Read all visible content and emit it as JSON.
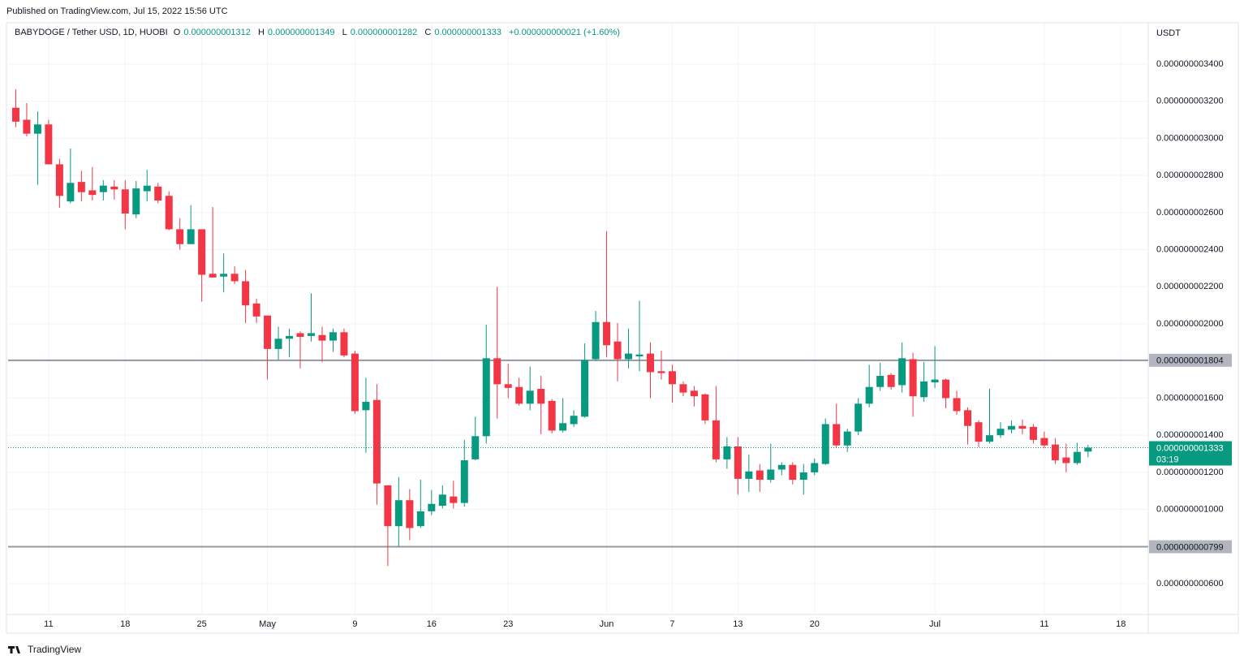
{
  "published": "Published on TradingView.com, Jul 15, 2022 15:56 UTC",
  "branding": "TradingView",
  "legend": {
    "symbol": "BABYDOGE / Tether USD, 1D, HUOBI",
    "ohlc": [
      {
        "key": "O",
        "text": "0.000000001312"
      },
      {
        "key": "H",
        "text": "0.000000001349"
      },
      {
        "key": "L",
        "text": "0.000000001282"
      },
      {
        "key": "C",
        "text": "0.000000001333"
      }
    ],
    "change": "+0.000000000021 (+1.60%)"
  },
  "chart_data": {
    "type": "candlestick",
    "unit": "USDT",
    "up_color": "#089981",
    "down_color": "#f23645",
    "grid": true,
    "open": [
      3.165e-09,
      3.1e-09,
      3.025e-09,
      3.075e-09,
      2.86e-09,
      2.66e-09,
      2.765e-09,
      2.72e-09,
      2.71e-09,
      2.74e-09,
      2.725e-09,
      2.59e-09,
      2.715e-09,
      2.74e-09,
      2.69e-09,
      2.51e-09,
      2.43e-09,
      2.51e-09,
      2.27e-09,
      2.255e-09,
      2.27e-09,
      2.23e-09,
      2.11e-09,
      2.045e-09,
      1.865e-09,
      1.92e-09,
      1.95e-09,
      1.935e-09,
      1.94e-09,
      1.91e-09,
      1.955e-09,
      1.84e-09,
      1.535e-09,
      1.59e-09,
      1.13e-09,
      9.1e-10,
      1.05e-09,
      9.1e-10,
      9.9e-10,
      1.02e-09,
      1.07e-09,
      1.035e-09,
      1.27e-09,
      1.395e-09,
      1.815e-09,
      1.675e-09,
      1.66e-09,
      1.57e-09,
      1.65e-09,
      1.585e-09,
      1.425e-09,
      1.46e-09,
      1.5e-09,
      1.81e-09,
      2.01e-09,
      1.905e-09,
      1.81e-09,
      1.825e-09,
      1.84e-09,
      1.745e-09,
      1.745e-09,
      1.675e-09,
      1.64e-09,
      1.62e-09,
      1.48e-09,
      1.27e-09,
      1.34e-09,
      1.165e-09,
      1.21e-09,
      1.16e-09,
      1.215e-09,
      1.24e-09,
      1.16e-09,
      1.2e-09,
      1.245e-09,
      1.46e-09,
      1.345e-09,
      1.42e-09,
      1.57e-09,
      1.66e-09,
      1.725e-09,
      1.67e-09,
      1.81e-09,
      1.605e-09,
      1.685e-09,
      1.7e-09,
      1.6e-09,
      1.535e-09,
      1.47e-09,
      1.365e-09,
      1.4e-09,
      1.43e-09,
      1.45e-09,
      1.445e-09,
      1.385e-09,
      1.35e-09,
      1.28e-09,
      1.25e-09,
      1.312e-09
    ],
    "high": [
      3.265e-09,
      3.19e-09,
      3.145e-09,
      3.1e-09,
      2.89e-09,
      2.945e-09,
      2.825e-09,
      2.845e-09,
      2.775e-09,
      2.775e-09,
      2.775e-09,
      2.77e-09,
      2.83e-09,
      2.76e-09,
      2.715e-09,
      2.57e-09,
      2.64e-09,
      2.51e-09,
      2.63e-09,
      2.38e-09,
      2.31e-09,
      2.29e-09,
      2.135e-09,
      2.045e-09,
      1.985e-09,
      1.975e-09,
      1.96e-09,
      2.165e-09,
      1.985e-09,
      1.975e-09,
      1.975e-09,
      1.855e-09,
      1.71e-09,
      1.675e-09,
      1.13e-09,
      1.175e-09,
      1.11e-09,
      1.16e-09,
      1.105e-09,
      1.13e-09,
      1.155e-09,
      1.375e-09,
      1.5e-09,
      1.995e-09,
      2.2e-09,
      1.785e-09,
      1.71e-09,
      1.77e-09,
      1.72e-09,
      1.595e-09,
      1.6e-09,
      1.535e-09,
      1.895e-09,
      2.07e-09,
      2.5e-09,
      2.005e-09,
      1.975e-09,
      2.125e-09,
      1.9e-09,
      1.855e-09,
      1.78e-09,
      1.69e-09,
      1.665e-09,
      1.625e-09,
      1.665e-09,
      1.39e-09,
      1.39e-09,
      1.295e-09,
      1.245e-09,
      1.355e-09,
      1.255e-09,
      1.255e-09,
      1.245e-09,
      1.275e-09,
      1.49e-09,
      1.57e-09,
      1.435e-09,
      1.6e-09,
      1.78e-09,
      1.79e-09,
      1.735e-09,
      1.9e-09,
      1.845e-09,
      1.795e-09,
      1.88e-09,
      1.705e-09,
      1.64e-09,
      1.55e-09,
      1.48e-09,
      1.65e-09,
      1.47e-09,
      1.48e-09,
      1.485e-09,
      1.46e-09,
      1.42e-09,
      1.385e-09,
      1.355e-09,
      1.36e-09,
      1.349e-09
    ],
    "low": [
      3.06e-09,
      3.01e-09,
      2.75e-09,
      2.86e-09,
      2.625e-09,
      2.65e-09,
      2.66e-09,
      2.665e-09,
      2.665e-09,
      2.67e-09,
      2.51e-09,
      2.57e-09,
      2.66e-09,
      2.65e-09,
      2.505e-09,
      2.4e-09,
      2.43e-09,
      2.12e-09,
      2.25e-09,
      2.17e-09,
      2.215e-09,
      2.005e-09,
      2.005e-09,
      1.7e-09,
      1.805e-09,
      1.82e-09,
      1.76e-09,
      1.905e-09,
      1.795e-09,
      1.85e-09,
      1.82e-09,
      1.515e-09,
      1.305e-09,
      1.025e-09,
      6.95e-10,
      8e-10,
      8.35e-10,
      9e-10,
      9.7e-10,
      1.005e-09,
      1.005e-09,
      1.015e-09,
      1.265e-09,
      1.355e-09,
      1.49e-09,
      1.6e-09,
      1.56e-09,
      1.535e-09,
      1.405e-09,
      1.41e-09,
      1.415e-09,
      1.445e-09,
      1.495e-09,
      1.8e-09,
      1.82e-09,
      1.69e-09,
      1.76e-09,
      1.745e-09,
      1.6e-09,
      1.7e-09,
      1.575e-09,
      1.61e-09,
      1.555e-09,
      1.46e-09,
      1.255e-09,
      1.22e-09,
      1.08e-09,
      1.095e-09,
      1.095e-09,
      1.145e-09,
      1.185e-09,
      1.135e-09,
      1.08e-09,
      1.185e-09,
      1.24e-09,
      1.335e-09,
      1.31e-09,
      1.4e-09,
      1.55e-09,
      1.64e-09,
      1.645e-09,
      1.63e-09,
      1.5e-09,
      1.58e-09,
      1.655e-09,
      1.545e-09,
      1.51e-09,
      1.35e-09,
      1.335e-09,
      1.355e-09,
      1.385e-09,
      1.41e-09,
      1.405e-09,
      1.355e-09,
      1.33e-09,
      1.245e-09,
      1.2e-09,
      1.24e-09,
      1.282e-09
    ],
    "close": [
      3.09e-09,
      3.025e-09,
      3.075e-09,
      2.86e-09,
      2.69e-09,
      2.76e-09,
      2.71e-09,
      2.695e-09,
      2.745e-09,
      2.725e-09,
      2.595e-09,
      2.73e-09,
      2.745e-09,
      2.665e-09,
      2.51e-09,
      2.43e-09,
      2.51e-09,
      2.265e-09,
      2.25e-09,
      2.27e-09,
      2.23e-09,
      2.1e-09,
      2.04e-09,
      1.865e-09,
      1.92e-09,
      1.935e-09,
      1.93e-09,
      1.95e-09,
      1.91e-09,
      1.955e-09,
      1.83e-09,
      1.53e-09,
      1.58e-09,
      1.14e-09,
      9.1e-10,
      1.05e-09,
      9e-10,
      9.9e-10,
      1.03e-09,
      1.08e-09,
      1.035e-09,
      1.265e-09,
      1.395e-09,
      1.815e-09,
      1.675e-09,
      1.655e-09,
      1.57e-09,
      1.64e-09,
      1.57e-09,
      1.425e-09,
      1.465e-09,
      1.505e-09,
      1.805e-09,
      2.01e-09,
      1.885e-09,
      1.81e-09,
      1.84e-09,
      1.835e-09,
      1.74e-09,
      1.735e-09,
      1.675e-09,
      1.63e-09,
      1.61e-09,
      1.48e-09,
      1.27e-09,
      1.34e-09,
      1.165e-09,
      1.205e-09,
      1.16e-09,
      1.215e-09,
      1.24e-09,
      1.16e-09,
      1.2e-09,
      1.25e-09,
      1.46e-09,
      1.345e-09,
      1.42e-09,
      1.57e-09,
      1.66e-09,
      1.72e-09,
      1.66e-09,
      1.815e-09,
      1.61e-09,
      1.69e-09,
      1.7e-09,
      1.6e-09,
      1.53e-09,
      1.45e-09,
      1.365e-09,
      1.4e-09,
      1.435e-09,
      1.45e-09,
      1.435e-09,
      1.375e-09,
      1.345e-09,
      1.265e-09,
      1.25e-09,
      1.31e-09,
      1.333e-09
    ],
    "xlim": [
      -0.7,
      103.5
    ],
    "xticks": [
      {
        "value": 3,
        "label": "11"
      },
      {
        "value": 10,
        "label": "18"
      },
      {
        "value": 17,
        "label": "25"
      },
      {
        "value": 23,
        "label": "May"
      },
      {
        "value": 31,
        "label": "9"
      },
      {
        "value": 38,
        "label": "16"
      },
      {
        "value": 45,
        "label": "23"
      },
      {
        "value": 54,
        "label": "Jun"
      },
      {
        "value": 60,
        "label": "7"
      },
      {
        "value": 66,
        "label": "13"
      },
      {
        "value": 73,
        "label": "20"
      },
      {
        "value": 84,
        "label": "Jul"
      },
      {
        "value": 94,
        "label": "11"
      },
      {
        "value": 101,
        "label": "18"
      }
    ],
    "ylim": [
      4.34e-10,
      3.623e-09
    ],
    "yticks": [
      {
        "value": 6e-10,
        "label": "0.000000000600"
      },
      {
        "value": 8e-10,
        "label": "0.000000000800"
      },
      {
        "value": 1e-09,
        "label": "0.000000001000"
      },
      {
        "value": 1.2e-09,
        "label": "0.000000001200"
      },
      {
        "value": 1.4e-09,
        "label": "0.000000001400"
      },
      {
        "value": 1.6e-09,
        "label": "0.000000001600"
      },
      {
        "value": 1.8e-09,
        "label": "0.000000001800"
      },
      {
        "value": 2e-09,
        "label": "0.000000002000"
      },
      {
        "value": 2.2e-09,
        "label": "0.000000002200"
      },
      {
        "value": 2.4e-09,
        "label": "0.000000002400"
      },
      {
        "value": 2.6e-09,
        "label": "0.000000002600"
      },
      {
        "value": 2.8e-09,
        "label": "0.000000002800"
      },
      {
        "value": 3e-09,
        "label": "0.000000003000"
      },
      {
        "value": 3.2e-09,
        "label": "0.000000003200"
      },
      {
        "value": 3.4e-09,
        "label": "0.000000003400"
      }
    ],
    "hlines": [
      {
        "value": 1.804e-09,
        "label": "0.000000001804"
      },
      {
        "value": 7.99e-10,
        "label": "0.000000000799"
      }
    ],
    "last_price": {
      "value": 1.333e-09,
      "label": "0.000000001333",
      "countdown": "03:19"
    }
  }
}
